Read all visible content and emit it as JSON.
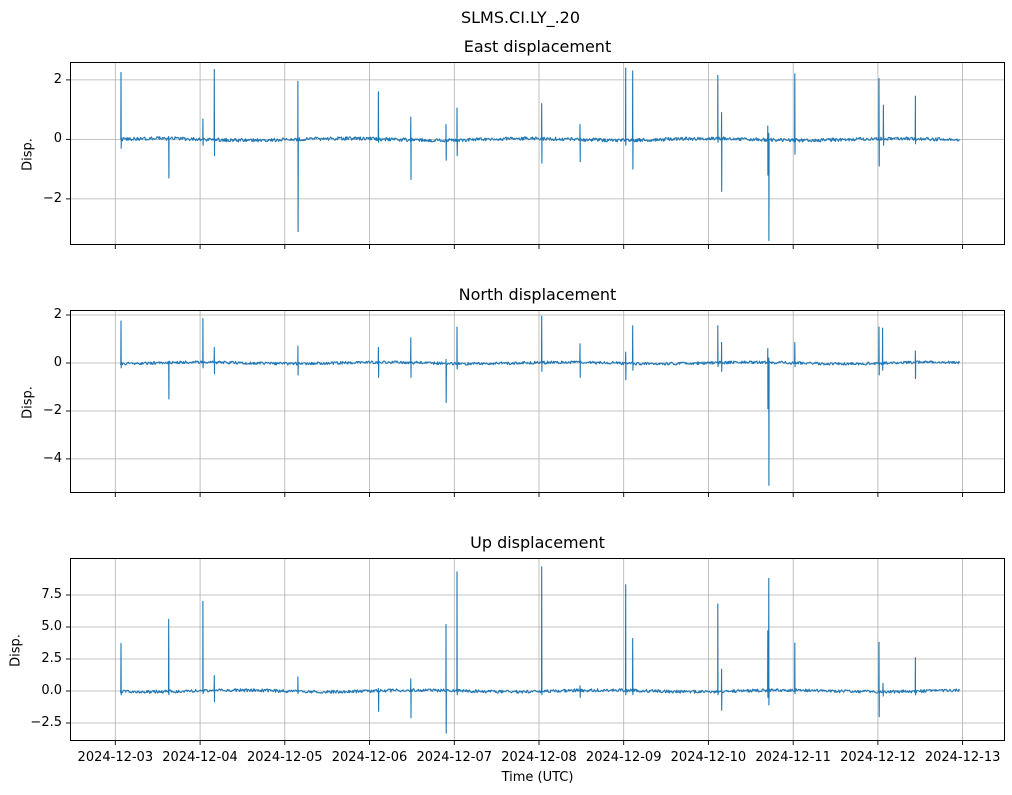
{
  "figure": {
    "suptitle": "SLMS.CI.LY_.20",
    "xlabel": "Time (UTC)",
    "line_color": "#1f77b4",
    "grid_color": "#b0b0b0",
    "spine_color": "#000000"
  },
  "x_axis": {
    "label": "Time (UTC)",
    "xlim_days": [
      -0.535,
      10.5
    ],
    "data_range_days": [
      0.06,
      9.97
    ],
    "ticks": [
      {
        "t": 0,
        "label": "2024-12-03"
      },
      {
        "t": 1,
        "label": "2024-12-04"
      },
      {
        "t": 2,
        "label": "2024-12-05"
      },
      {
        "t": 3,
        "label": "2024-12-06"
      },
      {
        "t": 4,
        "label": "2024-12-07"
      },
      {
        "t": 5,
        "label": "2024-12-08"
      },
      {
        "t": 6,
        "label": "2024-12-09"
      },
      {
        "t": 7,
        "label": "2024-12-10"
      },
      {
        "t": 8,
        "label": "2024-12-11"
      },
      {
        "t": 9,
        "label": "2024-12-12"
      },
      {
        "t": 10,
        "label": "2024-12-13"
      }
    ]
  },
  "chart_data": [
    {
      "type": "line",
      "title": "East displacement",
      "ylabel": "Disp.",
      "ylim": [
        -3.55,
        2.6
      ],
      "grid": true,
      "baseline": 0,
      "noise": 0.06,
      "yticks": [
        {
          "v": 2,
          "label": "2"
        },
        {
          "v": 0,
          "label": "0"
        },
        {
          "v": -2,
          "label": "−2"
        }
      ],
      "spikes": [
        [
          0.067,
          2.25,
          -0.3
        ],
        [
          0.63,
          0.1,
          -1.3
        ],
        [
          1.034,
          0.68,
          -0.2
        ],
        [
          1.168,
          2.35,
          -0.55
        ],
        [
          2.155,
          1.95,
          -3.1
        ],
        [
          3.105,
          1.6,
          -0.1
        ],
        [
          3.487,
          0.75,
          -1.35
        ],
        [
          3.903,
          0.5,
          -0.7
        ],
        [
          4.033,
          1.05,
          -0.55
        ],
        [
          5.032,
          1.2,
          -0.8
        ],
        [
          5.484,
          0.5,
          -0.75
        ],
        [
          6.023,
          2.4,
          -0.2
        ],
        [
          6.106,
          2.3,
          -1.0
        ],
        [
          7.111,
          2.15,
          -0.1
        ],
        [
          7.155,
          0.9,
          -1.75
        ],
        [
          7.7,
          0.45,
          -1.2
        ],
        [
          7.712,
          0.2,
          -3.4
        ],
        [
          8.019,
          2.2,
          -0.5
        ],
        [
          9.013,
          2.05,
          -0.9
        ],
        [
          9.065,
          1.15,
          -0.2
        ],
        [
          9.442,
          1.45,
          -0.15
        ]
      ]
    },
    {
      "type": "line",
      "title": "North displacement",
      "ylabel": "Disp.",
      "ylim": [
        -5.42,
        2.21
      ],
      "grid": true,
      "baseline": 0,
      "noise": 0.06,
      "yticks": [
        {
          "v": 2,
          "label": "2"
        },
        {
          "v": 0,
          "label": "0"
        },
        {
          "v": -2,
          "label": "−2"
        },
        {
          "v": -4,
          "label": "−4"
        }
      ],
      "spikes": [
        [
          0.067,
          1.75,
          -0.2
        ],
        [
          0.63,
          0.05,
          -1.5
        ],
        [
          1.034,
          1.85,
          -0.2
        ],
        [
          1.168,
          0.65,
          -0.45
        ],
        [
          2.155,
          0.7,
          -0.5
        ],
        [
          3.105,
          0.65,
          -0.6
        ],
        [
          3.487,
          1.05,
          -0.6
        ],
        [
          3.903,
          0.15,
          -1.65
        ],
        [
          4.033,
          1.5,
          -0.25
        ],
        [
          5.032,
          1.95,
          -0.35
        ],
        [
          5.484,
          0.8,
          -0.6
        ],
        [
          6.023,
          0.45,
          -0.7
        ],
        [
          6.106,
          1.55,
          -0.3
        ],
        [
          7.111,
          1.55,
          -0.15
        ],
        [
          7.155,
          0.85,
          -0.35
        ],
        [
          7.7,
          0.6,
          -1.9
        ],
        [
          7.712,
          0.2,
          -5.1
        ],
        [
          8.019,
          0.85,
          -0.15
        ],
        [
          9.013,
          1.5,
          -0.5
        ],
        [
          9.055,
          1.45,
          -0.3
        ],
        [
          9.442,
          0.5,
          -0.65
        ]
      ]
    },
    {
      "type": "line",
      "title": "Up displacement",
      "ylabel": "Disp.",
      "ylim": [
        -3.91,
        10.39
      ],
      "grid": true,
      "baseline": 0,
      "noise": 0.12,
      "yticks": [
        {
          "v": 7.5,
          "label": "7.5"
        },
        {
          "v": 5.0,
          "label": "5.0"
        },
        {
          "v": 2.5,
          "label": "2.5"
        },
        {
          "v": 0.0,
          "label": "0.0"
        },
        {
          "v": -2.5,
          "label": "−2.5"
        }
      ],
      "spikes": [
        [
          0.067,
          3.7,
          -0.3
        ],
        [
          0.63,
          5.6,
          -0.3
        ],
        [
          1.034,
          7.0,
          -0.2
        ],
        [
          1.168,
          1.2,
          -0.85
        ],
        [
          2.155,
          1.1,
          -0.2
        ],
        [
          3.105,
          0.2,
          -1.6
        ],
        [
          3.487,
          0.95,
          -2.1
        ],
        [
          3.903,
          5.2,
          -3.3
        ],
        [
          4.033,
          9.3,
          -0.3
        ],
        [
          5.032,
          9.7,
          -0.3
        ],
        [
          5.484,
          0.4,
          -0.5
        ],
        [
          6.023,
          8.3,
          -0.3
        ],
        [
          6.106,
          4.1,
          -0.3
        ],
        [
          7.111,
          6.8,
          -0.3
        ],
        [
          7.155,
          1.7,
          -1.5
        ],
        [
          7.7,
          4.7,
          -0.5
        ],
        [
          7.712,
          8.8,
          -1.1
        ],
        [
          8.019,
          3.75,
          -0.2
        ],
        [
          9.013,
          3.8,
          -2.0
        ],
        [
          9.06,
          0.6,
          -0.4
        ],
        [
          9.442,
          2.6,
          -0.3
        ]
      ]
    }
  ]
}
